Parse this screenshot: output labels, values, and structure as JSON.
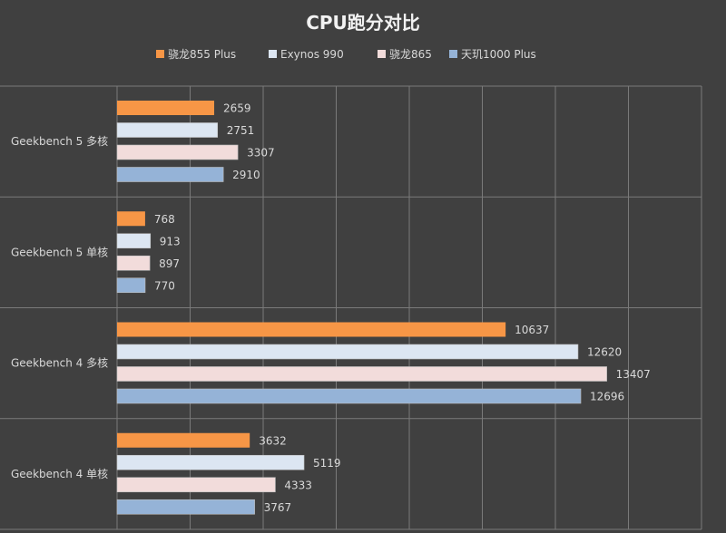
{
  "chart_data": {
    "type": "bar",
    "orientation": "horizontal",
    "title": "CPU跑分对比",
    "categories": [
      "Geekbench 5 多核",
      "Geekbench 5 单核",
      "Geekbench 4 多核",
      "Geekbench 4 单核"
    ],
    "series": [
      {
        "name": "骁龙855 Plus",
        "color": "#f79646",
        "values": [
          2659,
          768,
          10637,
          3632
        ]
      },
      {
        "name": "Exynos 990",
        "color": "#dce6f2",
        "values": [
          2751,
          913,
          12620,
          5119
        ]
      },
      {
        "name": "骁龙865",
        "color": "#f2dcdb",
        "values": [
          3307,
          897,
          13407,
          4333
        ]
      },
      {
        "name": "天玑1000 Plus",
        "color": "#95b3d7",
        "values": [
          2910,
          770,
          12696,
          3767
        ]
      }
    ],
    "xlim": [
      0,
      16000
    ],
    "xticks": [
      0,
      2000,
      4000,
      6000,
      8000,
      10000,
      12000,
      14000,
      16000
    ],
    "show_x_tick_labels": false,
    "grid": true,
    "legend_position": "top"
  }
}
